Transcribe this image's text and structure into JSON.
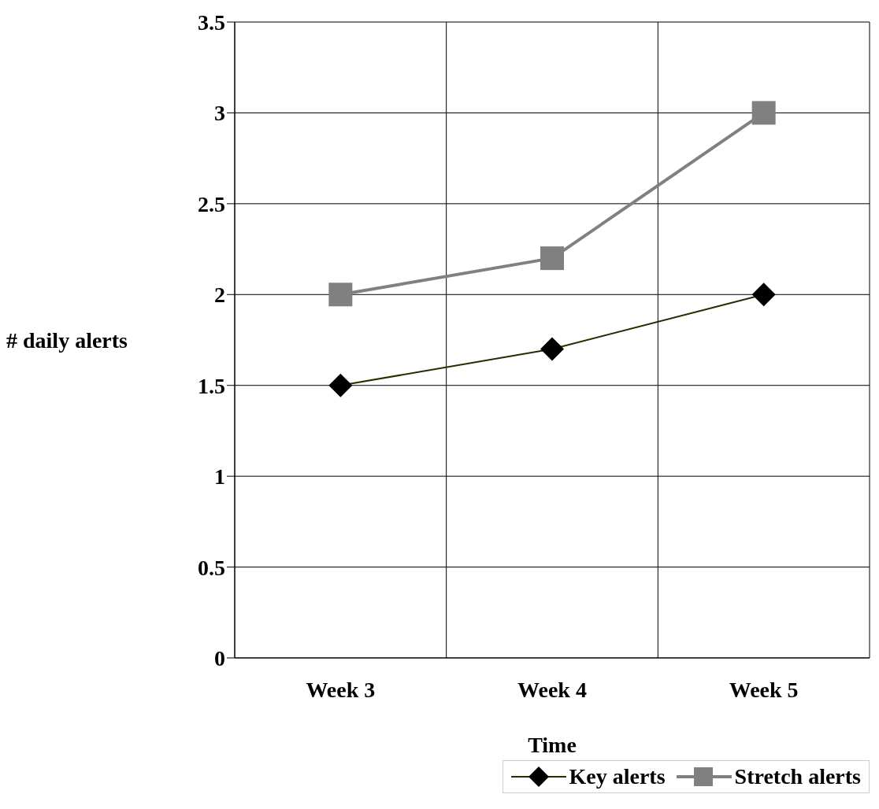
{
  "chart_data": {
    "type": "line",
    "xlabel": "Time",
    "ylabel": "# daily alerts",
    "categories": [
      "Week 3",
      "Week 4",
      "Week 5"
    ],
    "series": [
      {
        "name": "Key alerts",
        "color": "#2b2b00",
        "values": [
          1.5,
          1.7,
          2.0
        ],
        "marker": "diamond"
      },
      {
        "name": "Stretch alerts",
        "color": "#808080",
        "values": [
          2.0,
          2.2,
          3.0
        ],
        "marker": "square"
      }
    ],
    "ylim": [
      0,
      3.5
    ],
    "yticks": [
      0,
      0.5,
      1,
      1.5,
      2,
      2.5,
      3,
      3.5
    ],
    "grid": true,
    "legend": "bottom right"
  }
}
